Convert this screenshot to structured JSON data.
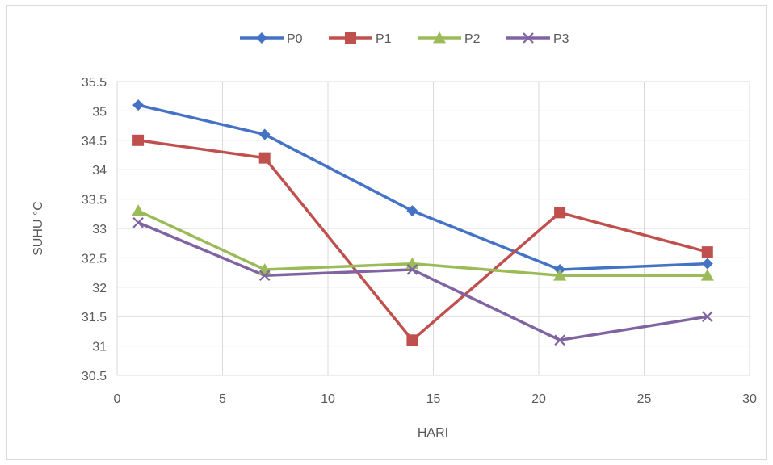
{
  "chart_data": {
    "type": "line",
    "title": "",
    "xlabel": "HARI",
    "ylabel": "SUHU °C",
    "xlim": [
      0,
      30
    ],
    "ylim": [
      30.5,
      35.5
    ],
    "xticks": [
      "0",
      "5",
      "10",
      "15",
      "20",
      "25",
      "30"
    ],
    "yticks": [
      "30.5",
      "31",
      "31.5",
      "32",
      "32.5",
      "33",
      "33.5",
      "34",
      "34.5",
      "35",
      "35.5"
    ],
    "grid": true,
    "legend_position": "top",
    "x": [
      1,
      7,
      14,
      21,
      28
    ],
    "series": [
      {
        "name": "P0",
        "values": [
          35.1,
          34.6,
          33.3,
          32.3,
          32.4
        ],
        "color": "#4472C4",
        "marker": "diamond"
      },
      {
        "name": "P1",
        "values": [
          34.5,
          34.2,
          31.1,
          33.27,
          32.6
        ],
        "color": "#C0504D",
        "marker": "square"
      },
      {
        "name": "P2",
        "values": [
          33.3,
          32.3,
          32.4,
          32.2,
          32.2
        ],
        "color": "#9BBB59",
        "marker": "triangle"
      },
      {
        "name": "P3",
        "values": [
          33.1,
          32.2,
          32.3,
          31.1,
          31.5
        ],
        "color": "#8064A2",
        "marker": "x"
      }
    ]
  }
}
